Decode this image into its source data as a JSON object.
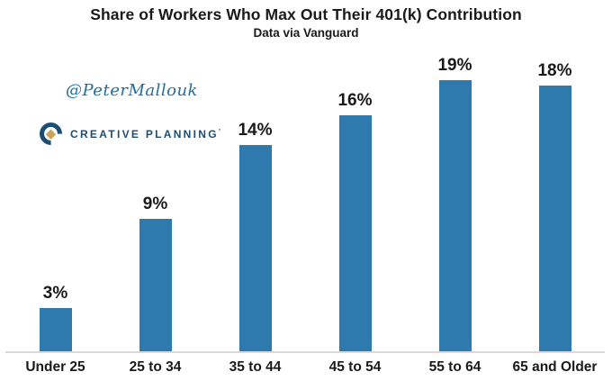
{
  "title": "Share of Workers Who Max Out Their 401(k) Contribution",
  "subtitle": "Data via Vanguard",
  "watermark": {
    "handle": "@PeterMallouk",
    "logo_text": "CREATIVE PLANNING",
    "logo_tm": "’"
  },
  "colors": {
    "bar": "#2E79AE",
    "text": "#1A1A1A",
    "handle": "#1F6E9C",
    "logo_navy": "#1B4E74",
    "logo_gold": "#C9A45F",
    "axis_line": "#D9D9D9"
  },
  "chart_data": {
    "type": "bar",
    "title": "Share of Workers Who Max Out Their 401(k) Contribution",
    "subtitle": "Data via Vanguard",
    "categories": [
      "Under 25",
      "25 to 34",
      "35 to 44",
      "45 to 54",
      "55 to 64",
      "65 and Older"
    ],
    "values": [
      3,
      9,
      14,
      16,
      19,
      18
    ],
    "value_labels": [
      "3%",
      "9%",
      "14%",
      "16%",
      "19%",
      "18%"
    ],
    "xlabel": "",
    "ylabel": "",
    "ylim": [
      0,
      20
    ],
    "grid": false,
    "legend": false,
    "bar_color": "#2E79AE"
  }
}
